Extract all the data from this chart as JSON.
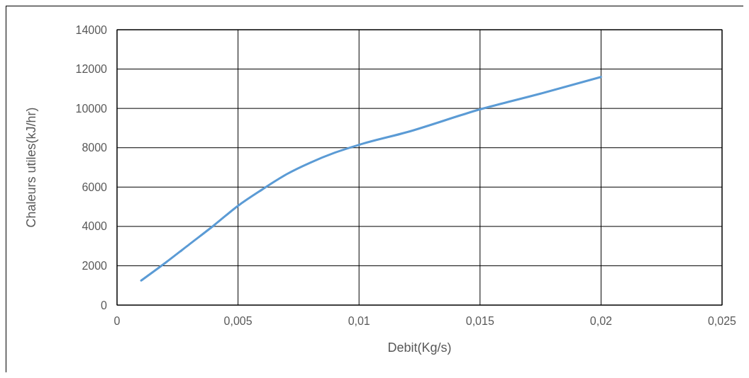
{
  "chart_data": {
    "type": "line",
    "xlabel": "Debit(Kg/s)",
    "ylabel": "Chaleurs utiles(kJ/hr)",
    "x": [
      0.001,
      0.002,
      0.003,
      0.004,
      0.005,
      0.006,
      0.007,
      0.008,
      0.009,
      0.01,
      0.012,
      0.015,
      0.0175,
      0.02
    ],
    "series": [
      {
        "color": "#5b9bd5",
        "values": [
          1250,
          2150,
          3100,
          4050,
          5050,
          5880,
          6650,
          7250,
          7750,
          8150,
          8800,
          9950,
          10750,
          11600
        ]
      }
    ],
    "xlim": [
      0,
      0.025
    ],
    "xticks": [
      0,
      {
        "value": 0.005,
        "label": "0,005"
      },
      {
        "value": 0.01,
        "label": "0,01"
      },
      {
        "value": 0.015,
        "label": "0,015"
      },
      {
        "value": 0.02,
        "label": "0,02"
      },
      {
        "value": 0.025,
        "label": "0,025"
      }
    ],
    "ylim": [
      0,
      14000
    ],
    "yticks": [
      0,
      2000,
      4000,
      6000,
      8000,
      10000,
      12000,
      14000
    ],
    "grid": true,
    "marker": "none",
    "line_style": "solid"
  }
}
